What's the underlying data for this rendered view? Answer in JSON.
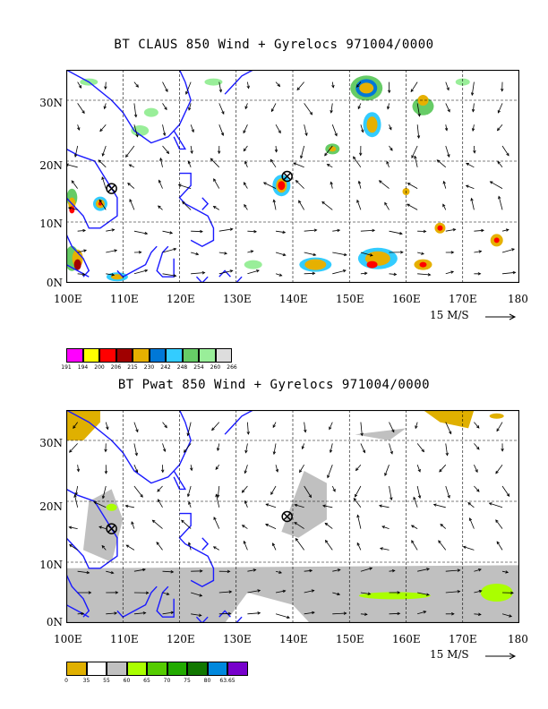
{
  "panels": [
    {
      "title": "BT CLAUS 850 Wind + Gyrelocs 971004/0000",
      "x_ticks": [
        "100E",
        "110E",
        "120E",
        "130E",
        "140E",
        "150E",
        "160E",
        "170E",
        "180"
      ],
      "y_ticks": [
        "30N",
        "20N",
        "10N",
        "0N"
      ],
      "wind_scale_label": "15 M/S",
      "legend": {
        "colors": [
          "#ff00ff",
          "#ffff00",
          "#ff0000",
          "#a00000",
          "#e6b000",
          "#0078d7",
          "#33ccff",
          "#66cc66",
          "#99ee99",
          "#dddddd"
        ],
        "labels": [
          "191",
          "194",
          "200",
          "206",
          "215",
          "230",
          "242",
          "248",
          "254",
          "260",
          "266"
        ]
      },
      "gyre_markers": [
        {
          "lon": 108,
          "lat": 15.5
        },
        {
          "lon": 139,
          "lat": 17.5
        }
      ]
    },
    {
      "title": "BT Pwat 850 Wind + Gyrelocs 971004/0000",
      "x_ticks": [
        "100E",
        "110E",
        "120E",
        "130E",
        "140E",
        "150E",
        "160E",
        "170E",
        "180"
      ],
      "y_ticks": [
        "30N",
        "20N",
        "10N",
        "0N"
      ],
      "wind_scale_label": "15 M/S",
      "legend": {
        "colors": [
          "#e0b000",
          "#ffffff",
          "#c0c0c0",
          "#aaff00",
          "#55cc00",
          "#22aa00",
          "#117700",
          "#0088dd",
          "#7700cc"
        ],
        "labels": [
          "0",
          "35",
          "55",
          "60",
          "65",
          "70",
          "75",
          "80",
          "63.65"
        ]
      },
      "gyre_markers": [
        {
          "lon": 108,
          "lat": 15.5
        },
        {
          "lon": 139,
          "lat": 17.5
        }
      ]
    }
  ]
}
